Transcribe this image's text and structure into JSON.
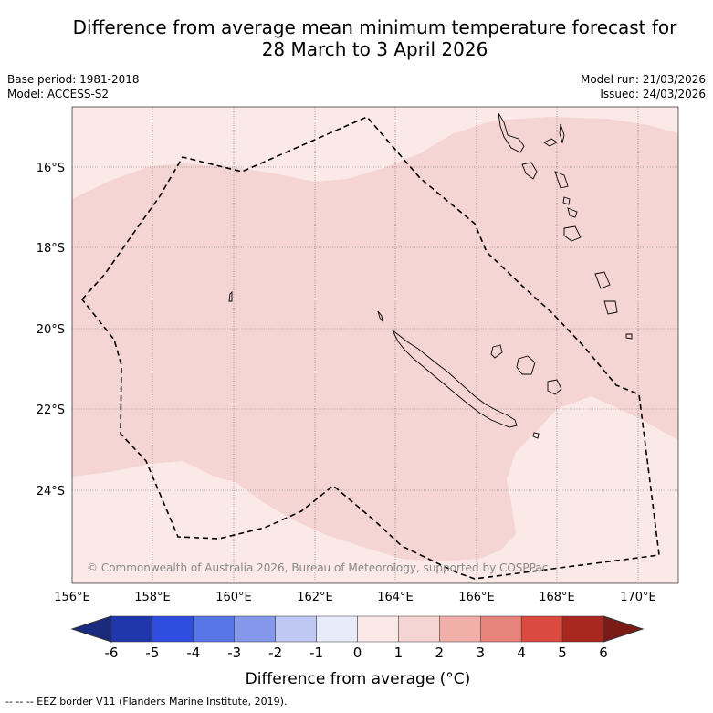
{
  "title": {
    "line1": "Difference from average mean minimum temperature forecast for",
    "line2": "28 March to 3 April 2026"
  },
  "meta_left": {
    "base_period": "Base period: 1981-2018",
    "model": "Model: ACCESS-S2"
  },
  "meta_right": {
    "model_run": "Model run: 21/03/2026",
    "issued": "Issued: 24/03/2026"
  },
  "map": {
    "lon_range": [
      156,
      171
    ],
    "lat_range": [
      -26.3,
      -14.5
    ],
    "lon_ticks": [
      "156°E",
      "158°E",
      "160°E",
      "162°E",
      "164°E",
      "166°E",
      "168°E",
      "170°E"
    ],
    "lat_ticks": [
      "16°S",
      "18°S",
      "20°S",
      "22°S",
      "24°S"
    ],
    "copyright": "© Commonwealth of Australia 2026, Bureau of Meteorology, supported by COSPPac",
    "colors": {
      "zero_to_one": "#fbe9e7",
      "one_to_two": "#f5d5d3",
      "coast": "#000000",
      "eez": "#000000"
    }
  },
  "colorbar": {
    "ticks": [
      "-6",
      "-5",
      "-4",
      "-3",
      "-2",
      "-1",
      "0",
      "1",
      "2",
      "3",
      "4",
      "5",
      "6"
    ],
    "colors": [
      "#2036ab",
      "#2f4ee0",
      "#5976e6",
      "#8497ea",
      "#bfc7f3",
      "#e8ecfa",
      "#fbe9e7",
      "#f5d5d3",
      "#f0afa9",
      "#e8847c",
      "#db4a3e",
      "#a8281f"
    ],
    "under_color": "#1a2a7c",
    "over_color": "#7a1c15",
    "label": "Difference from average (°C)"
  },
  "footer": "-- -- -- EEZ border V11 (Flanders Marine Institute, 2019)."
}
